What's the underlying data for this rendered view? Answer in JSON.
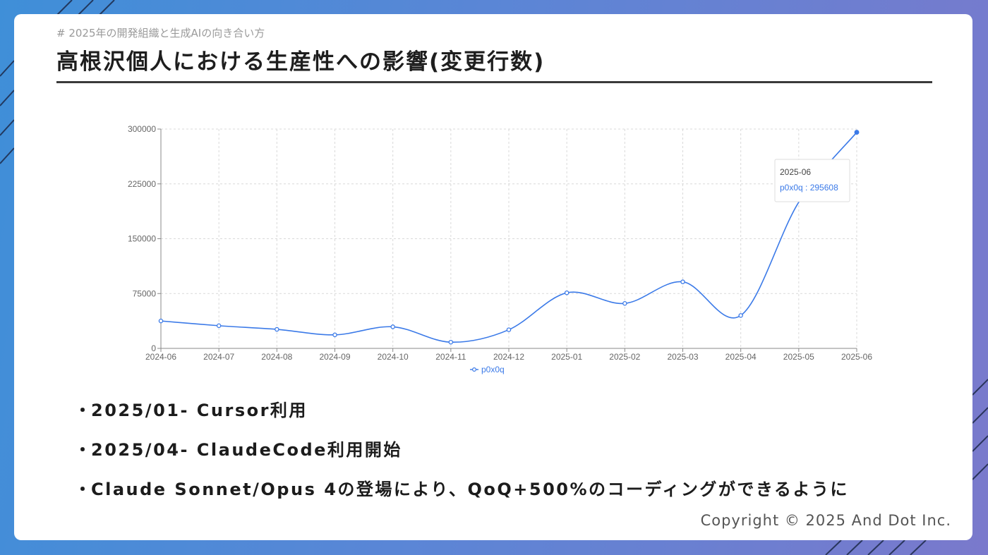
{
  "slide": {
    "breadcrumb": "# 2025年の開発組織と生成AIの向き合い方",
    "title": "高根沢個人における生産性への影響(変更行数)",
    "copyright": "Copyright © 2025 And Dot Inc."
  },
  "bullets": [
    {
      "marker": "・",
      "text": "2025/01- Cursor利用"
    },
    {
      "marker": "・",
      "text": "2025/04- ClaudeCode利用開始"
    },
    {
      "marker": "・",
      "text": "Claude Sonnet/Opus 4の登場により、QoQ+500%のコーディングができるように"
    }
  ],
  "colors": {
    "series": "#3b7ae8",
    "grid": "#d9d9d9",
    "axis": "#888888"
  },
  "chart_data": {
    "type": "line",
    "x": [
      "2024-06",
      "2024-07",
      "2024-08",
      "2024-09",
      "2024-10",
      "2024-11",
      "2024-12",
      "2025-01",
      "2025-02",
      "2025-03",
      "2025-04",
      "2025-05",
      "2025-06"
    ],
    "series": [
      {
        "name": "p0x0q",
        "values": [
          37500,
          31000,
          26000,
          18500,
          29500,
          8500,
          25500,
          76000,
          61500,
          91000,
          45000,
          200000,
          295608
        ],
        "marker_hidden_index": [
          11
        ]
      }
    ],
    "yticks": [
      0,
      75000,
      150000,
      225000,
      300000
    ],
    "ylim": [
      0,
      300000
    ],
    "grid": true,
    "legend": "bottom-center",
    "tooltip": {
      "label": "2025-06",
      "value_text": "p0x0q : 295608"
    }
  }
}
